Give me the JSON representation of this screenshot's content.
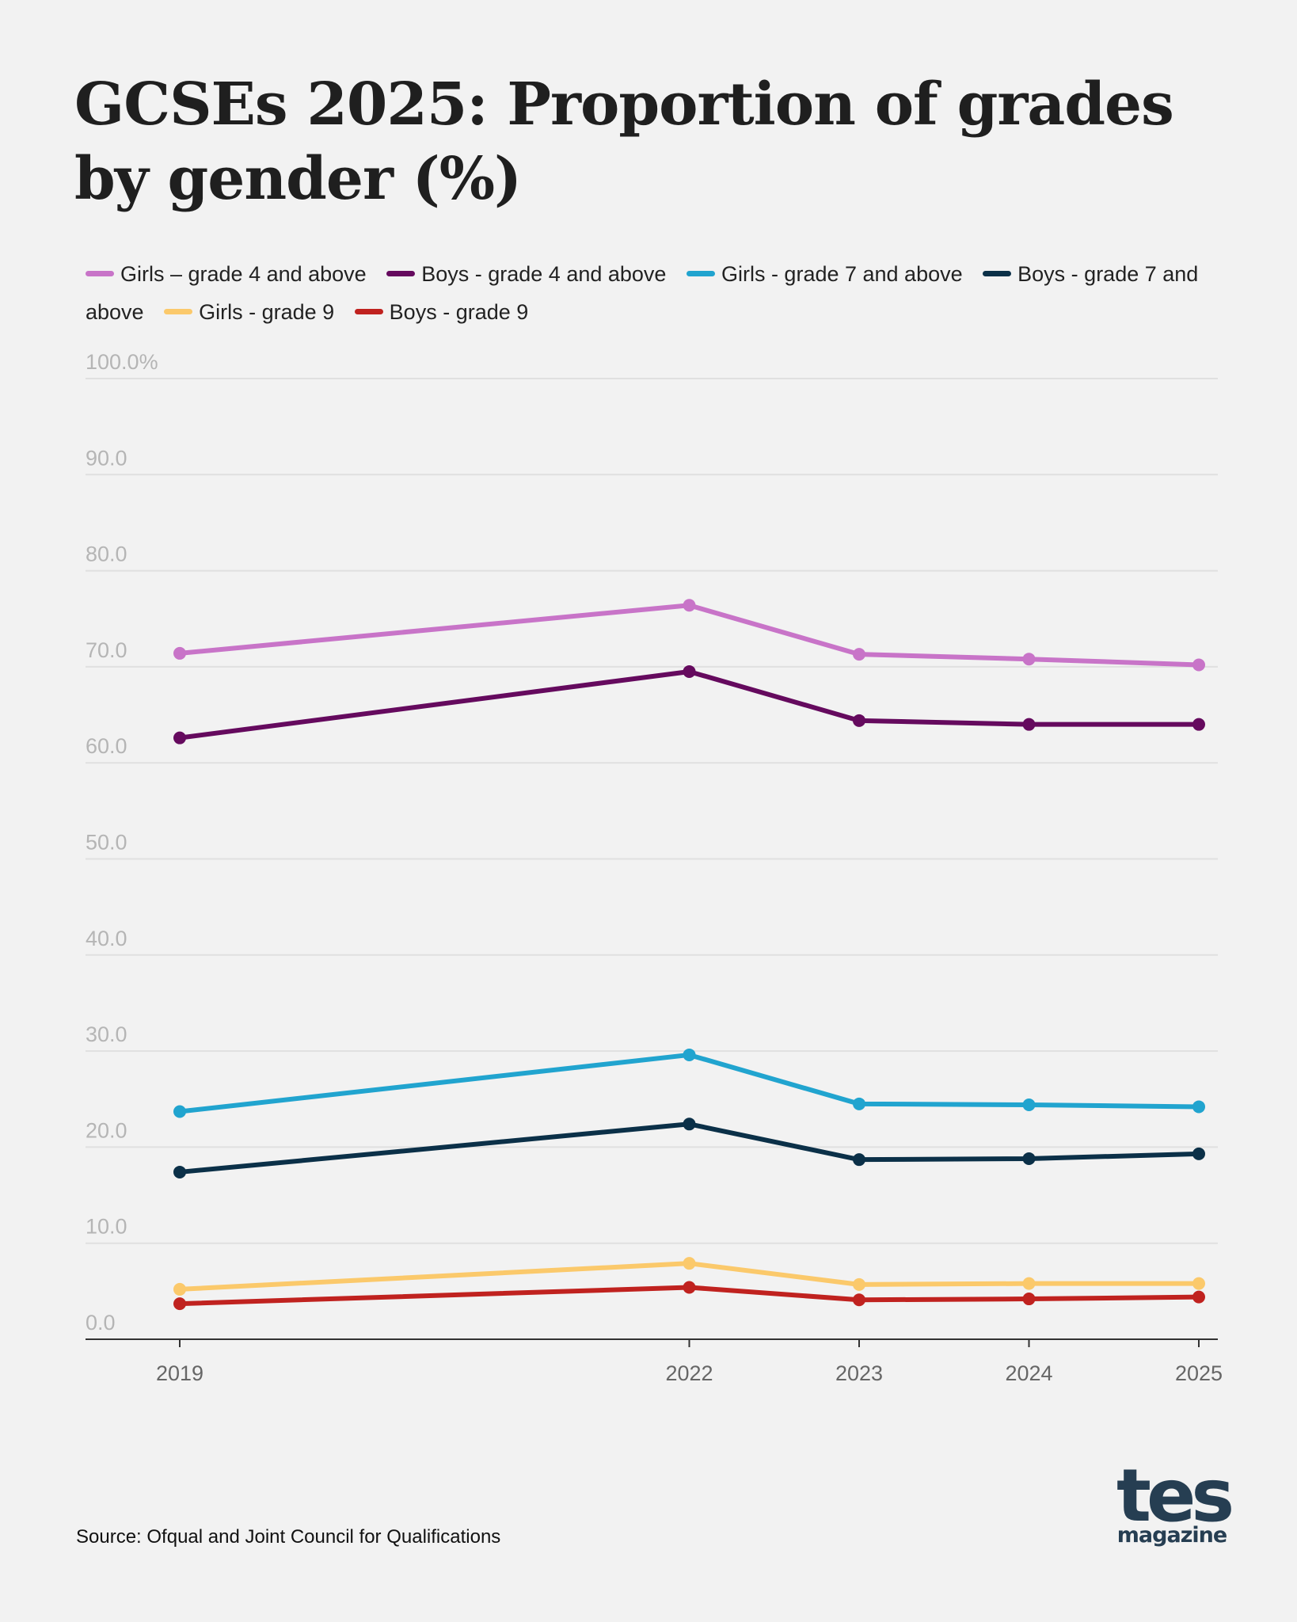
{
  "chart_data": {
    "type": "line",
    "title": "GCSEs 2025: Proportion of grades by gender (%)",
    "xlabel": "",
    "ylabel": "",
    "x": [
      2019,
      2022,
      2023,
      2024,
      2025
    ],
    "x_tick_labels": [
      "2019",
      "2022",
      "2023",
      "2024",
      "2025"
    ],
    "y_tick_labels": [
      "0.0",
      "10.0",
      "20.0",
      "30.0",
      "40.0",
      "50.0",
      "60.0",
      "70.0",
      "80.0",
      "90.0",
      "100.0%"
    ],
    "ylim": [
      0,
      100
    ],
    "grid": true,
    "legend_placement": "top",
    "series": [
      {
        "name": "Girls – grade 4 and above",
        "color": "#c874c8",
        "values": [
          71.4,
          76.4,
          71.3,
          70.8,
          70.2
        ]
      },
      {
        "name": "Boys - grade 4 and above",
        "color": "#650a5e",
        "values": [
          62.6,
          69.5,
          64.4,
          64.0,
          64.0
        ]
      },
      {
        "name": "Girls - grade 7 and above",
        "color": "#21a4cf",
        "values": [
          23.7,
          29.6,
          24.5,
          24.4,
          24.2
        ]
      },
      {
        "name": "Boys - grade 7 and above",
        "color": "#0b3048",
        "values": [
          17.4,
          22.4,
          18.7,
          18.8,
          19.3
        ]
      },
      {
        "name": "Girls - grade 9",
        "color": "#fbc96b",
        "values": [
          5.2,
          7.9,
          5.7,
          5.8,
          5.8
        ]
      },
      {
        "name": "Boys - grade 9",
        "color": "#c0221f",
        "values": [
          3.7,
          5.4,
          4.1,
          4.2,
          4.4
        ]
      }
    ]
  },
  "source": "Source: Ofqual and Joint Council for Qualifications",
  "logo": {
    "brand": "tes",
    "sub": "magazine"
  }
}
